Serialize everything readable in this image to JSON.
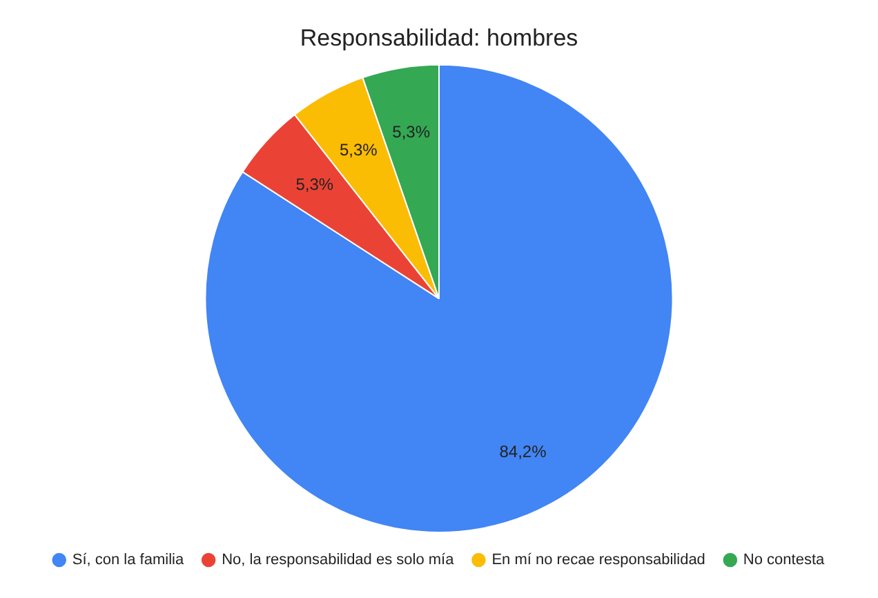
{
  "chart_data": {
    "type": "pie",
    "title": "Responsabilidad: hombres",
    "categories": [
      "Sí, con la familia",
      "No, la responsabilidad es solo mía",
      "En mí no recae responsabilidad",
      "No contesta"
    ],
    "values": [
      84.2,
      5.3,
      5.3,
      5.3
    ],
    "colors": [
      "#4285f4",
      "#ea4335",
      "#fbbc04",
      "#34a853"
    ],
    "value_labels": [
      "84,2%",
      "5,3%",
      "5,3%",
      "5,3%"
    ],
    "legend": "bottom"
  }
}
